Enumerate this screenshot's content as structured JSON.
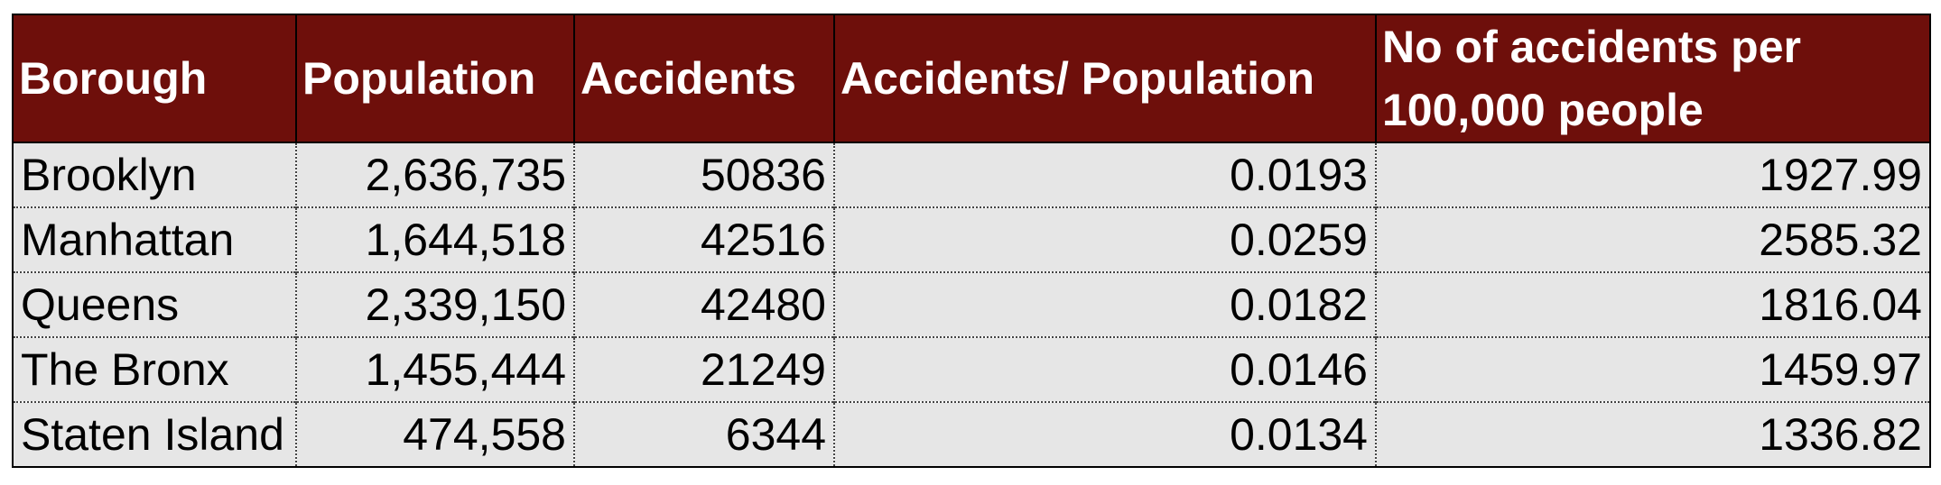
{
  "table": {
    "headers": [
      "Borough",
      "Population",
      "Accidents",
      "Accidents/ Population",
      "No of accidents per 100,000 people"
    ],
    "rows": [
      [
        "Brooklyn",
        "2,636,735",
        "50836",
        "0.0193",
        "1927.99"
      ],
      [
        "Manhattan",
        "1,644,518",
        "42516",
        "0.0259",
        "2585.32"
      ],
      [
        "Queens",
        "2,339,150",
        "42480",
        "0.0182",
        "1816.04"
      ],
      [
        "The Bronx",
        "1,455,444",
        "21249",
        "0.0146",
        "1459.97"
      ],
      [
        "Staten Island",
        "474,558",
        "6344",
        "0.0134",
        "1336.82"
      ]
    ]
  },
  "colors": {
    "header_bg": "#6e0f0b",
    "header_text": "#ffffff",
    "cell_bg": "#e6e6e6"
  }
}
